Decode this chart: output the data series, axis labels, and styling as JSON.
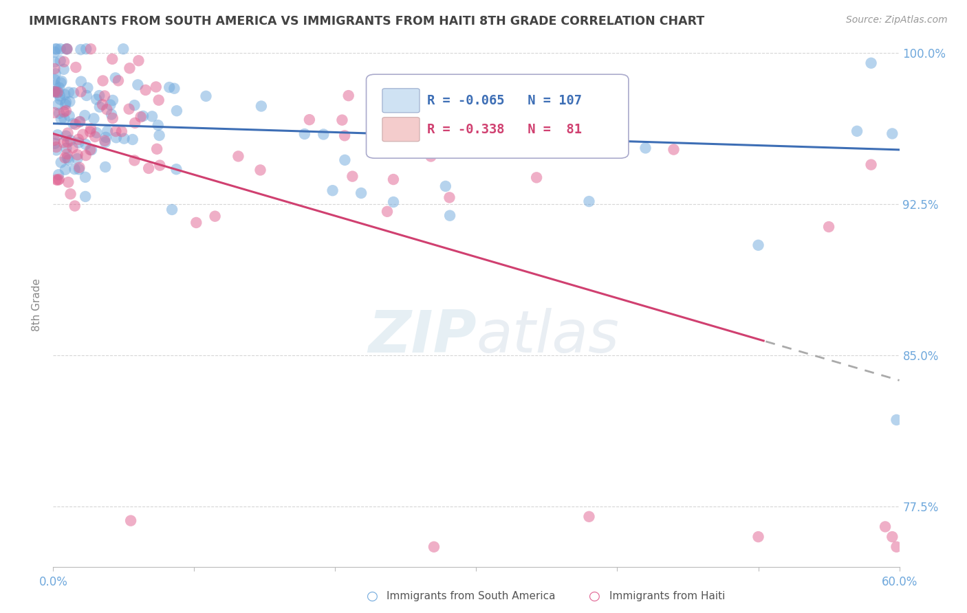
{
  "title": "IMMIGRANTS FROM SOUTH AMERICA VS IMMIGRANTS FROM HAITI 8TH GRADE CORRELATION CHART",
  "source_text": "Source: ZipAtlas.com",
  "ylabel": "8th Grade",
  "xlim": [
    0.0,
    0.6
  ],
  "ylim": [
    0.745,
    1.005
  ],
  "R_blue": -0.065,
  "N_blue": 107,
  "R_pink": -0.338,
  "N_pink": 81,
  "blue_color": "#6fa8dc",
  "pink_color": "#e06090",
  "trend_blue_color": "#3d6eb5",
  "trend_pink_color": "#d04070",
  "background_color": "#ffffff",
  "grid_color": "#cccccc",
  "title_color": "#434343",
  "axis_label_color": "#888888",
  "tick_color": "#6fa8dc",
  "legend_box_blue": "#cfe2f3",
  "legend_box_pink": "#f4cccc",
  "watermark_color": "#d8e8f0"
}
